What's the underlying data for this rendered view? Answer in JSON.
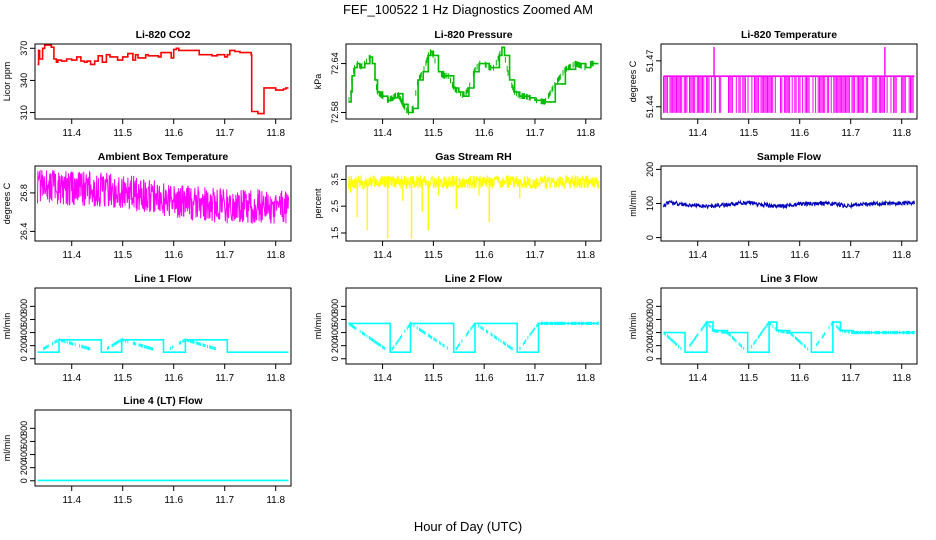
{
  "figure": {
    "title": "FEF_100522  1 Hz Diagnostics Zoomed AM",
    "xlabel": "Hour of Day (UTC)"
  },
  "chart_data": [
    {
      "type": "line",
      "title": "Li-820 CO2",
      "ylabel": "Licor ppm",
      "color": "#ff0000",
      "style": "step",
      "xlim": [
        11.328,
        11.83
      ],
      "xticks": [
        11.4,
        11.5,
        11.6,
        11.7,
        11.8
      ],
      "xtick_labels": [
        "11.4",
        "11.5",
        "11.6",
        "11.7",
        "11.8"
      ],
      "ylim": [
        304,
        374
      ],
      "yticks": [
        310,
        340,
        370
      ],
      "ytick_labels": [
        "310",
        "340",
        "370"
      ],
      "series": [
        {
          "name": "CO2",
          "x": [
            11.333,
            11.335,
            11.337,
            11.343,
            11.347,
            11.36,
            11.365,
            11.37,
            11.373,
            11.38,
            11.39,
            11.4,
            11.41,
            11.418,
            11.425,
            11.43,
            11.437,
            11.445,
            11.452,
            11.46,
            11.468,
            11.475,
            11.49,
            11.5,
            11.51,
            11.52,
            11.525,
            11.53,
            11.54,
            11.545,
            11.55,
            11.56,
            11.57,
            11.575,
            11.585,
            11.595,
            11.6,
            11.605,
            11.61,
            11.62,
            11.635,
            11.65,
            11.665,
            11.675,
            11.685,
            11.7,
            11.705,
            11.71,
            11.72,
            11.73,
            11.745,
            11.752,
            11.753,
            11.765,
            11.775,
            11.777,
            11.79,
            11.8,
            11.815,
            11.82,
            11.825
          ],
          "y": [
            355,
            368,
            360,
            370,
            373,
            371,
            360,
            357,
            359,
            358,
            360,
            359,
            362,
            358,
            357,
            358,
            355,
            358,
            363,
            357,
            364,
            362,
            359,
            362,
            365,
            359,
            364,
            361,
            361,
            364,
            363,
            363,
            362,
            366,
            366,
            361,
            369,
            370,
            368,
            368,
            368,
            364,
            364,
            363,
            364,
            362,
            364,
            368,
            367,
            366,
            366,
            364,
            311,
            309,
            309,
            333,
            333,
            331,
            332,
            333,
            333
          ]
        }
      ]
    },
    {
      "type": "line",
      "title": "Li-820 Pressure",
      "ylabel": "kPa",
      "color": "#00bb00",
      "style": "step",
      "xlim": [
        11.328,
        11.83
      ],
      "xticks": [
        11.4,
        11.5,
        11.6,
        11.7,
        11.8
      ],
      "xtick_labels": [
        "11.4",
        "11.5",
        "11.6",
        "11.7",
        "11.8"
      ],
      "ylim": [
        72.572,
        72.664
      ],
      "yticks": [
        72.58,
        72.64
      ],
      "ytick_labels": [
        "72.58",
        "72.64"
      ],
      "series": [
        {
          "name": "Pressure",
          "x": [
            11.333,
            11.338,
            11.34,
            11.345,
            11.35,
            11.355,
            11.365,
            11.375,
            11.38,
            11.385,
            11.39,
            11.4,
            11.41,
            11.42,
            11.43,
            11.44,
            11.45,
            11.46,
            11.47,
            11.48,
            11.49,
            11.495,
            11.5,
            11.51,
            11.52,
            11.53,
            11.54,
            11.55,
            11.56,
            11.57,
            11.58,
            11.59,
            11.6,
            11.61,
            11.62,
            11.63,
            11.635,
            11.64,
            11.65,
            11.66,
            11.67,
            11.68,
            11.69,
            11.7,
            11.72,
            11.74,
            11.76,
            11.78,
            11.8,
            11.81,
            11.82,
            11.825
          ],
          "y": [
            72.593,
            72.605,
            72.625,
            72.635,
            72.64,
            72.635,
            72.64,
            72.648,
            72.64,
            72.62,
            72.605,
            72.6,
            72.595,
            72.598,
            72.603,
            72.59,
            72.58,
            72.585,
            72.62,
            72.63,
            72.65,
            72.655,
            72.65,
            72.63,
            72.625,
            72.625,
            72.61,
            72.605,
            72.6,
            72.61,
            72.63,
            72.64,
            72.64,
            72.635,
            72.635,
            72.65,
            72.66,
            72.65,
            72.62,
            72.605,
            72.6,
            72.6,
            72.598,
            72.595,
            72.593,
            72.615,
            72.633,
            72.64,
            72.635,
            72.64,
            72.64,
            72.64
          ]
        }
      ]
    },
    {
      "type": "line",
      "title": "Li-820 Temperature",
      "ylabel": "degrees C",
      "color": "#ff00ff",
      "style": "dense",
      "xlim": [
        11.328,
        11.83
      ],
      "xticks": [
        11.4,
        11.5,
        11.6,
        11.7,
        11.8
      ],
      "xtick_labels": [
        "11.4",
        "11.5",
        "11.6",
        "11.7",
        "11.8"
      ],
      "ylim": [
        51.432,
        51.481
      ],
      "yticks": [
        51.44,
        51.47
      ],
      "ytick_labels": [
        "51.44",
        "51.47"
      ],
      "series": [
        {
          "name": "Temperature",
          "base": 51.46,
          "low": 51.436,
          "spikes": [
            {
              "x": 11.432,
              "y": 51.479
            },
            {
              "x": 11.767,
              "y": 51.479
            }
          ]
        }
      ]
    },
    {
      "type": "line",
      "title": "Ambient Box Temperature",
      "ylabel": "degrees C",
      "color": "#ff00ff",
      "style": "noise",
      "xlim": [
        11.328,
        11.83
      ],
      "xticks": [
        11.4,
        11.5,
        11.6,
        11.7,
        11.8
      ],
      "xtick_labels": [
        "11.4",
        "11.5",
        "11.6",
        "11.7",
        "11.8"
      ],
      "ylim": [
        26.3,
        27.08
      ],
      "yticks": [
        26.4,
        26.8
      ],
      "ytick_labels": [
        "26.4",
        "26.8"
      ],
      "series": [
        {
          "name": "Ambient Temperature",
          "x": [
            11.333,
            11.4,
            11.5,
            11.6,
            11.7,
            11.825
          ],
          "y": [
            26.87,
            26.85,
            26.82,
            26.72,
            26.66,
            26.66
          ],
          "spread": 0.18
        }
      ]
    },
    {
      "type": "line",
      "title": "Gas Stream RH",
      "ylabel": "percent",
      "color": "#ffff00",
      "style": "noise",
      "xlim": [
        11.328,
        11.83
      ],
      "xticks": [
        11.4,
        11.5,
        11.6,
        11.7,
        11.8
      ],
      "xtick_labels": [
        "11.4",
        "11.5",
        "11.6",
        "11.7",
        "11.8"
      ],
      "ylim": [
        1.2,
        4.0
      ],
      "yticks": [
        1.5,
        2.5,
        3.5
      ],
      "ytick_labels": [
        "1.5",
        "2.5",
        "3.5"
      ],
      "series": [
        {
          "name": "RH",
          "x": [
            11.333,
            11.825
          ],
          "y": [
            3.4,
            3.4
          ],
          "spread": 0.25,
          "dips": [
            {
              "x": 11.337,
              "y": 3.0
            },
            {
              "x": 11.35,
              "y": 2.1
            },
            {
              "x": 11.37,
              "y": 1.6
            },
            {
              "x": 11.41,
              "y": 1.3
            },
            {
              "x": 11.44,
              "y": 2.7
            },
            {
              "x": 11.457,
              "y": 1.3
            },
            {
              "x": 11.478,
              "y": 2.3
            },
            {
              "x": 11.49,
              "y": 1.6
            },
            {
              "x": 11.51,
              "y": 2.9
            },
            {
              "x": 11.545,
              "y": 2.4
            },
            {
              "x": 11.59,
              "y": 2.9
            },
            {
              "x": 11.61,
              "y": 1.9
            },
            {
              "x": 11.67,
              "y": 2.8
            }
          ]
        }
      ]
    },
    {
      "type": "line",
      "title": "Sample Flow",
      "ylabel": "ml/min",
      "color": "#0000bb",
      "style": "noise",
      "xlim": [
        11.328,
        11.83
      ],
      "xticks": [
        11.4,
        11.5,
        11.6,
        11.7,
        11.8
      ],
      "xtick_labels": [
        "11.4",
        "11.5",
        "11.6",
        "11.7",
        "11.8"
      ],
      "ylim": [
        -10,
        210
      ],
      "yticks": [
        0,
        100,
        200
      ],
      "ytick_labels": [
        "0",
        "100",
        "200"
      ],
      "series": [
        {
          "name": "Sample Flow",
          "x": [
            11.333,
            11.345,
            11.36,
            11.38,
            11.41,
            11.43,
            11.45,
            11.48,
            11.5,
            11.52,
            11.54,
            11.55,
            11.57,
            11.6,
            11.63,
            11.67,
            11.69,
            11.71,
            11.74,
            11.77,
            11.8,
            11.825
          ],
          "y": [
            95,
            103,
            100,
            96,
            93,
            92,
            95,
            101,
            103,
            98,
            95,
            93,
            93,
            98,
            100,
            99,
            93,
            95,
            99,
            100,
            101,
            101
          ],
          "spread": 6
        }
      ]
    },
    {
      "type": "line",
      "title": "Line 1 Flow",
      "ylabel": "ml/min",
      "color": "#00ffff",
      "style": "step",
      "xlim": [
        11.328,
        11.83
      ],
      "xticks": [
        11.4,
        11.5,
        11.6,
        11.7,
        11.8
      ],
      "xtick_labels": [
        "11.4",
        "11.5",
        "11.6",
        "11.7",
        "11.8"
      ],
      "ylim": [
        -80,
        1080
      ],
      "yticks": [
        0,
        200,
        400,
        600,
        800
      ],
      "ytick_labels": [
        "0",
        "200",
        "400",
        "600",
        "800"
      ],
      "series": [
        {
          "name": "Line 1",
          "x": [
            11.333,
            11.375,
            11.458,
            11.498,
            11.58,
            11.623,
            11.705,
            11.825
          ],
          "y": [
            100,
            290,
            100,
            290,
            100,
            290,
            100,
            100
          ]
        }
      ]
    },
    {
      "type": "line",
      "title": "Line 2 Flow",
      "ylabel": "ml/min",
      "color": "#00ffff",
      "style": "step",
      "xlim": [
        11.328,
        11.83
      ],
      "xticks": [
        11.4,
        11.5,
        11.6,
        11.7,
        11.8
      ],
      "xtick_labels": [
        "11.4",
        "11.5",
        "11.6",
        "11.7",
        "11.8"
      ],
      "ylim": [
        -80,
        1080
      ],
      "yticks": [
        0,
        200,
        400,
        600,
        800
      ],
      "ytick_labels": [
        "0",
        "200",
        "400",
        "600",
        "800"
      ],
      "series": [
        {
          "name": "Line 2",
          "x": [
            11.333,
            11.415,
            11.455,
            11.54,
            11.582,
            11.665,
            11.707,
            11.825
          ],
          "y": [
            540,
            100,
            540,
            100,
            540,
            100,
            540,
            540
          ]
        }
      ]
    },
    {
      "type": "line",
      "title": "Line 3 Flow",
      "ylabel": "ml/min",
      "color": "#00ffff",
      "style": "step",
      "xlim": [
        11.328,
        11.83
      ],
      "xticks": [
        11.4,
        11.5,
        11.6,
        11.7,
        11.8
      ],
      "xtick_labels": [
        "11.4",
        "11.5",
        "11.6",
        "11.7",
        "11.8"
      ],
      "ylim": [
        -80,
        1080
      ],
      "yticks": [
        0,
        200,
        400,
        600,
        800
      ],
      "ytick_labels": [
        "0",
        "200",
        "400",
        "600",
        "800"
      ],
      "series": [
        {
          "name": "Line 3",
          "x": [
            11.333,
            11.375,
            11.418,
            11.43,
            11.458,
            11.498,
            11.54,
            11.555,
            11.58,
            11.623,
            11.665,
            11.68,
            11.705,
            11.825
          ],
          "y": [
            400,
            100,
            560,
            430,
            400,
            100,
            560,
            430,
            400,
            100,
            560,
            430,
            400,
            400
          ]
        }
      ]
    },
    {
      "type": "line",
      "title": "Line 4 (LT) Flow",
      "ylabel": "ml/min",
      "color": "#00ffff",
      "style": "step",
      "xlim": [
        11.328,
        11.83
      ],
      "xticks": [
        11.4,
        11.5,
        11.6,
        11.7,
        11.8
      ],
      "xtick_labels": [
        "11.4",
        "11.5",
        "11.6",
        "11.7",
        "11.8"
      ],
      "ylim": [
        -80,
        1080
      ],
      "yticks": [
        0,
        200,
        400,
        600,
        800
      ],
      "ytick_labels": [
        "0",
        "200",
        "400",
        "600",
        "800"
      ],
      "series": [
        {
          "name": "Line 4",
          "x": [
            11.333,
            11.825
          ],
          "y": [
            5,
            5
          ]
        }
      ]
    }
  ]
}
